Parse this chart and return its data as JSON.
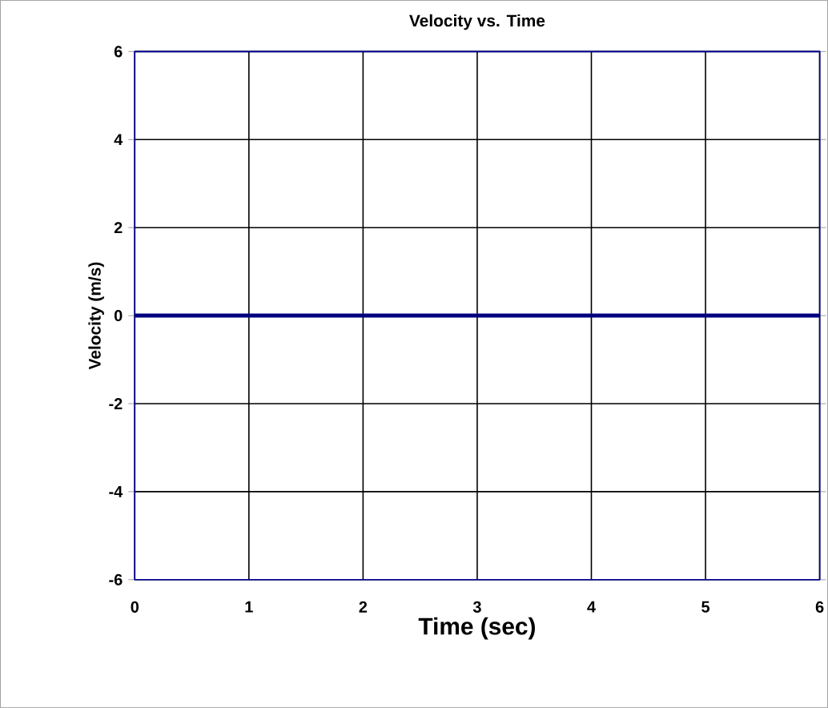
{
  "chart_data": {
    "type": "line",
    "title": "Velocity vs. Time",
    "xlabel": "Time (sec)",
    "ylabel": "Velocity  (m/s)",
    "x": [
      0,
      6
    ],
    "series": [
      {
        "color": "#000080",
        "values": [
          0,
          0
        ]
      }
    ],
    "xlim": [
      0,
      6
    ],
    "ylim": [
      -6,
      6
    ],
    "xticks": [
      0,
      1,
      2,
      3,
      4,
      5,
      6
    ],
    "yticks": [
      -6,
      -4,
      -2,
      0,
      2,
      4,
      6
    ],
    "grid": true,
    "marker": "none",
    "line_style": "solid"
  }
}
